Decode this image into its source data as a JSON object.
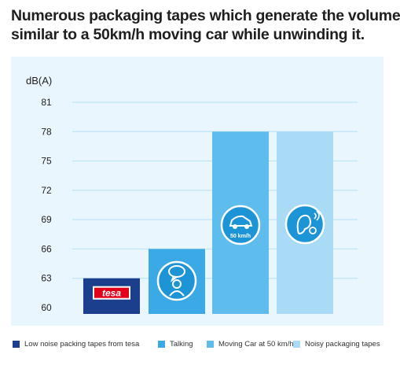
{
  "title_lines": [
    "Numerous packaging tapes which generate the volume",
    "similar to a 50km/h moving car while unwinding it."
  ],
  "chart_data": {
    "type": "bar",
    "title": "Numerous packaging tapes which generate the volume similar to a 50km/h moving car while unwinding it.",
    "ylabel": "dB(A)",
    "ylim": [
      60,
      81
    ],
    "yticks": [
      60,
      63,
      66,
      69,
      72,
      75,
      78,
      81
    ],
    "grid": true,
    "legend_position": "bottom",
    "categories": [
      "Low noise packing tapes from tesa",
      "Talking",
      "Moving Car at 50 km/h",
      "Noisy packaging tapes"
    ],
    "values": [
      63,
      66,
      78,
      78
    ],
    "colors": [
      "#1b3f8c",
      "#3ba9e6",
      "#5fbdee",
      "#a9daf6"
    ],
    "icons": [
      "tesa-logo",
      "talking-person-icon",
      "car-50kmh-icon",
      "ear-noise-icon"
    ],
    "icon_text": [
      "tesa",
      "",
      "50 km/h",
      ""
    ]
  }
}
